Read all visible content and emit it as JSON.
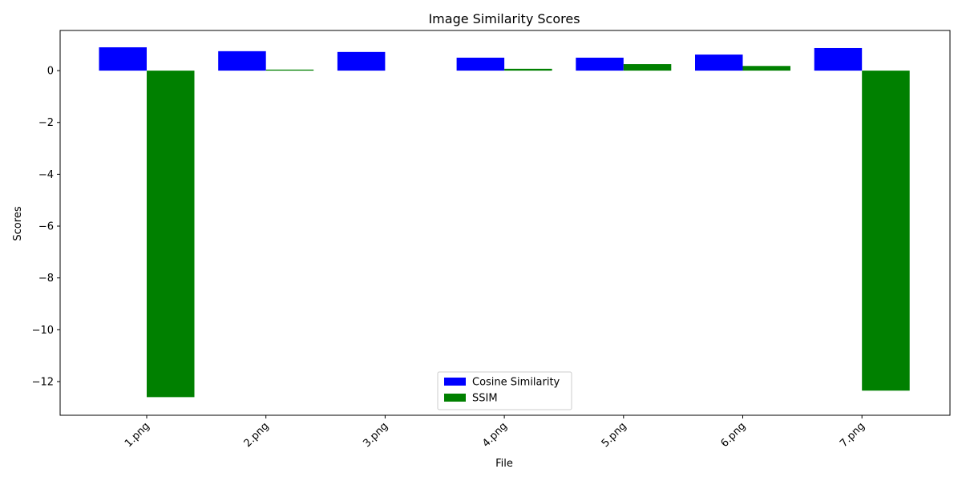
{
  "chart_data": {
    "type": "bar",
    "title": "Image Similarity Scores",
    "xlabel": "File",
    "ylabel": "Scores",
    "categories": [
      "1.png",
      "2.png",
      "3.png",
      "4.png",
      "5.png",
      "6.png",
      "7.png"
    ],
    "series": [
      {
        "name": "Cosine Similarity",
        "color": "#0000ff",
        "values": [
          0.9,
          0.75,
          0.72,
          0.5,
          0.5,
          0.62,
          0.87
        ]
      },
      {
        "name": "SSIM",
        "color": "#008000",
        "values": [
          -12.6,
          0.04,
          0.0,
          0.07,
          0.25,
          0.18,
          -12.35
        ]
      }
    ],
    "ylim": [
      -13.3,
      1.55
    ],
    "yticks": [
      0,
      -2,
      -4,
      -6,
      -8,
      -10,
      -12
    ],
    "ytick_labels": [
      "0",
      "−2",
      "−4",
      "−6",
      "−8",
      "−10",
      "−12"
    ],
    "grid": false,
    "legend_position": "lower-center"
  }
}
